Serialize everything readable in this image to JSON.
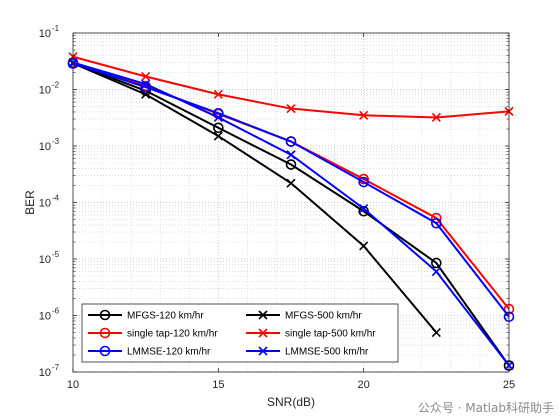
{
  "chart_data": {
    "type": "line",
    "xlabel": "SNR(dB)",
    "ylabel": "BER",
    "xlim": [
      10,
      25
    ],
    "ylim": [
      1e-07,
      0.1
    ],
    "yscale": "log",
    "grid": "on",
    "x_ticks": [
      10,
      15,
      20,
      25
    ],
    "x_tick_labels": [
      "10",
      "15",
      "20",
      "25"
    ],
    "y_ticks": [
      1e-07,
      1e-06,
      1e-05,
      0.0001,
      0.001,
      0.01,
      0.1
    ],
    "y_tick_bases": [
      "10",
      "10",
      "10",
      "10",
      "10",
      "10",
      "10"
    ],
    "y_tick_exps": [
      "-7",
      "-6",
      "-5",
      "-4",
      "-3",
      "-2",
      "-1"
    ],
    "legend_position": "bottom-left",
    "x": [
      10,
      12.5,
      15,
      17.5,
      20,
      22.5,
      25
    ],
    "series": [
      {
        "name": "MFGS-120 km/hr",
        "color": "#000000",
        "marker": "circle",
        "values": [
          0.029,
          0.0095,
          0.0021,
          0.00047,
          7e-05,
          8.5e-06,
          1.3e-07
        ]
      },
      {
        "name": "MFGS-500 km/hr",
        "color": "#000000",
        "marker": "x",
        "values": [
          0.029,
          0.0082,
          0.0015,
          0.00022,
          1.7e-05,
          5e-07,
          null
        ]
      },
      {
        "name": "single tap-120 km/hr",
        "color": "#ff0000",
        "marker": "circle",
        "values": [
          0.03,
          0.0115,
          0.0037,
          0.0012,
          0.00026,
          5.3e-05,
          1.3e-06
        ]
      },
      {
        "name": "single tap-500 km/hr",
        "color": "#ff0000",
        "marker": "x",
        "values": [
          0.038,
          0.017,
          0.0082,
          0.0046,
          0.0035,
          0.0032,
          0.0041
        ]
      },
      {
        "name": "LMMSE-120 km/hr",
        "color": "#0000ff",
        "marker": "circle",
        "values": [
          0.029,
          0.011,
          0.0038,
          0.0012,
          0.00023,
          4.3e-05,
          9.5e-07
        ]
      },
      {
        "name": "LMMSE-500 km/hr",
        "color": "#0000ff",
        "marker": "x",
        "values": [
          0.03,
          0.0125,
          0.0032,
          0.0007,
          7.8e-05,
          6e-06,
          1.3e-07
        ]
      }
    ]
  },
  "watermark": "公众号 · Matlab科研助手"
}
